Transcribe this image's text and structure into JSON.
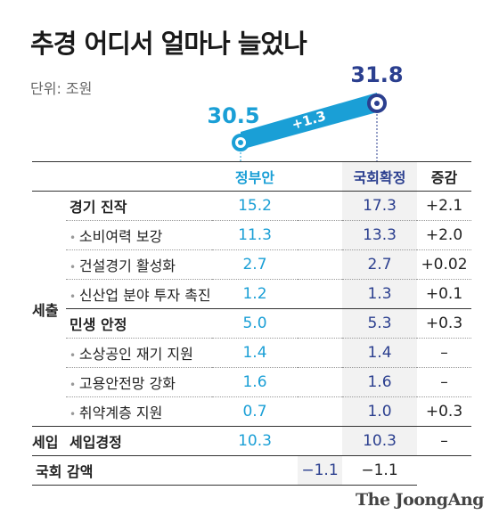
{
  "title": "추경 어디서 얼마나 늘었나",
  "unit": "단위: 조원",
  "chart_data": {
    "type": "line",
    "points": [
      {
        "label": "정부안",
        "value": 30.5,
        "display": "30.5"
      },
      {
        "label": "국회확정",
        "value": 31.8,
        "display": "31.8"
      }
    ],
    "change_label": "+1.3",
    "colors": {
      "gov": "#1a9fd6",
      "nat": "#2b3f8f",
      "bar": "#1a9fd6"
    }
  },
  "table": {
    "headers": {
      "gov": "정부안",
      "nat": "국회확정",
      "inc": "증감"
    },
    "group_sechul": "세출",
    "group_seip": "세입",
    "rows": [
      {
        "cat": "경기 진작",
        "gov": "15.2",
        "nat": "17.3",
        "inc": "+2.1"
      },
      {
        "cat": "소비여력 보강",
        "gov": "11.3",
        "nat": "13.3",
        "inc": "+2.0"
      },
      {
        "cat": "건설경기 활성화",
        "gov": "2.7",
        "nat": "2.7",
        "inc": "+0.02"
      },
      {
        "cat": "신산업 분야 투자 촉진",
        "gov": "1.2",
        "nat": "1.3",
        "inc": "+0.1"
      },
      {
        "cat": "민생 안정",
        "gov": "5.0",
        "nat": "5.3",
        "inc": "+0.3"
      },
      {
        "cat": "소상공인 재기 지원",
        "gov": "1.4",
        "nat": "1.4",
        "inc": "–"
      },
      {
        "cat": "고용안전망 강화",
        "gov": "1.6",
        "nat": "1.6",
        "inc": "–"
      },
      {
        "cat": "취약계층 지원",
        "gov": "0.7",
        "nat": "1.0",
        "inc": "+0.3"
      },
      {
        "cat": "세입경정",
        "gov": "10.3",
        "nat": "10.3",
        "inc": "–"
      },
      {
        "cat": "국회 감액",
        "gov": "",
        "nat": "−1.1",
        "inc": "−1.1"
      }
    ]
  },
  "logo": "The JoongAng"
}
